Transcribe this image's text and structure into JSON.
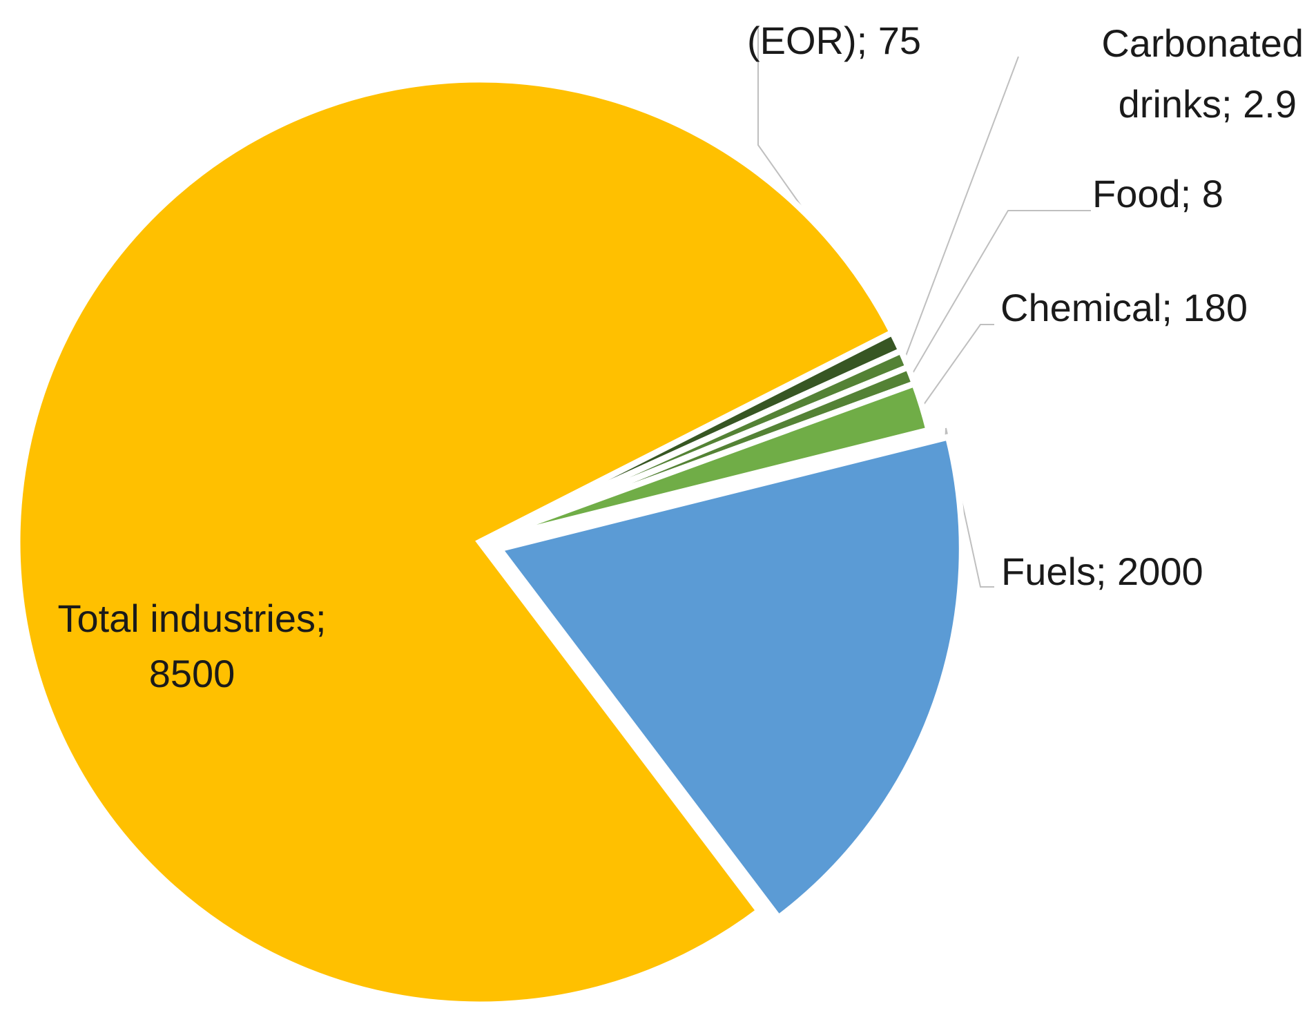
{
  "chart_data": {
    "type": "pie",
    "title": "",
    "legend": "none",
    "slices": [
      {
        "label": "Fuels; 2000",
        "value": 2000,
        "color": "#5B9BD5",
        "exploded": true
      },
      {
        "label": "Total industries;",
        "label_line2": "8500",
        "value": 8500,
        "color": "#FFC000",
        "exploded": false
      },
      {
        "label": "(EOR); 75",
        "value": 75,
        "color": "#375623",
        "exploded": false
      },
      {
        "label": "Carbonated",
        "label_line2": "drinks; 2.9",
        "value": 2.9,
        "color": "#548235",
        "exploded": false
      },
      {
        "label": "Food; 8",
        "value": 8,
        "color": "#548235",
        "exploded": false
      },
      {
        "label": "Chemical; 180",
        "value": 180,
        "color": "#70AD47",
        "exploded": false
      }
    ]
  }
}
